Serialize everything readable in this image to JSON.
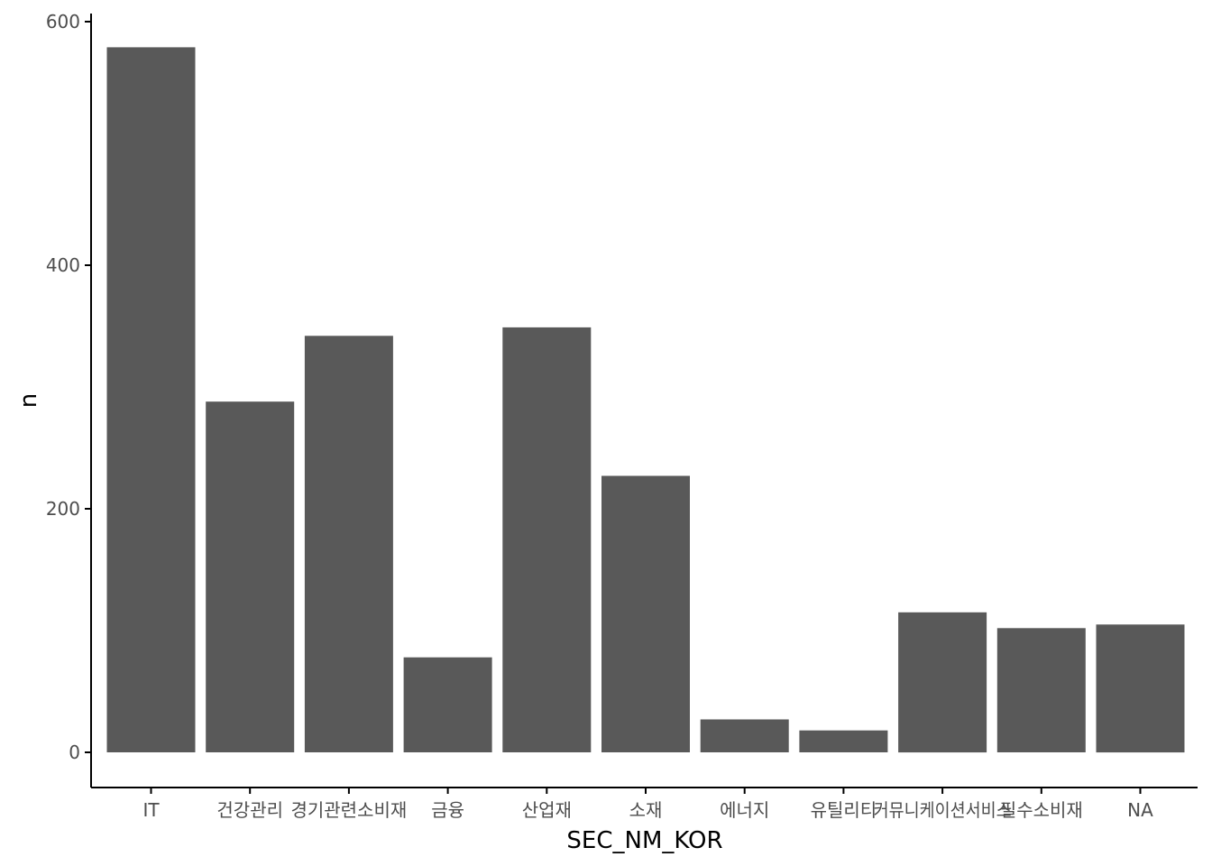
{
  "chart_data": {
    "type": "bar",
    "title": "",
    "xlabel": "SEC_NM_KOR",
    "ylabel": "n",
    "categories": [
      "IT",
      "건강관리",
      "경기관련소비재",
      "금융",
      "산업재",
      "소재",
      "에너지",
      "유틸리티",
      "커뮤니케이션서비스",
      "필수소비재",
      "NA"
    ],
    "values": [
      579,
      288,
      342,
      78,
      349,
      227,
      27,
      18,
      115,
      102,
      105
    ],
    "ylim": [
      0,
      600
    ],
    "yticks": [
      0,
      200,
      400,
      600
    ],
    "grid": false,
    "legend": "none",
    "bar_color": "#595959"
  }
}
